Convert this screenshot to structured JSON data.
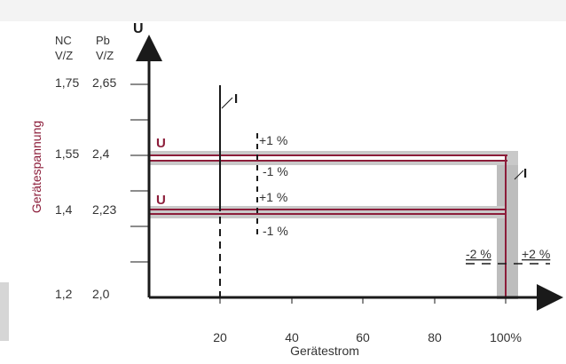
{
  "colors": {
    "background": "#ffffff",
    "page_top_band": "#f3f3f3",
    "page_left_band": "#e9e9e9",
    "ink": "#1a1a1a",
    "accent_red": "#8c1d3a",
    "tolerance_grey": "#bdbdbd"
  },
  "diagram": {
    "y_axis_symbol": "U",
    "x_axis_title": "Gerätestrom",
    "y_axis_title": "Gerätespannung",
    "column_headers": {
      "nc_line1": "NC",
      "nc_line2": "V/Z",
      "pb_line1": "Pb",
      "pb_line2": "V/Z"
    },
    "voltage_levels": [
      {
        "nc": "1,75",
        "pb": "2,65"
      },
      {
        "nc": "1,55",
        "pb": "2,4"
      },
      {
        "nc": "1,4",
        "pb": "2,23"
      },
      {
        "nc": "1,2",
        "pb": "2,0"
      }
    ],
    "x_ticks": [
      "20",
      "40",
      "60",
      "80",
      "100%"
    ],
    "upper_band": {
      "label": "U",
      "plus": "+1 %",
      "minus": "-1 %"
    },
    "lower_band": {
      "label": "U",
      "plus": "+1 %",
      "minus": "-1 %"
    },
    "current_markers": {
      "left": "I",
      "right": "I"
    },
    "current_tolerance": {
      "minus": "-2 %",
      "plus": "+2 %"
    }
  }
}
